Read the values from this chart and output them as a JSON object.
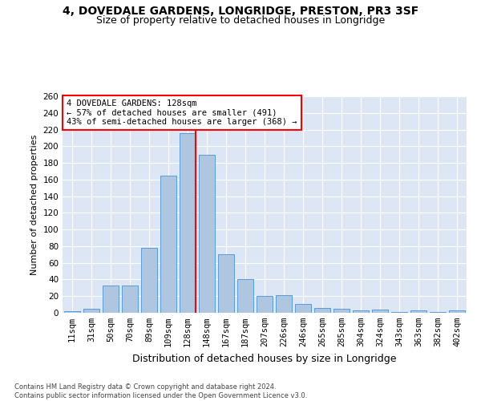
{
  "title": "4, DOVEDALE GARDENS, LONGRIDGE, PRESTON, PR3 3SF",
  "subtitle": "Size of property relative to detached houses in Longridge",
  "xlabel": "Distribution of detached houses by size in Longridge",
  "ylabel": "Number of detached properties",
  "categories": [
    "11sqm",
    "31sqm",
    "50sqm",
    "70sqm",
    "89sqm",
    "109sqm",
    "128sqm",
    "148sqm",
    "167sqm",
    "187sqm",
    "207sqm",
    "226sqm",
    "246sqm",
    "265sqm",
    "285sqm",
    "304sqm",
    "324sqm",
    "343sqm",
    "363sqm",
    "382sqm",
    "402sqm"
  ],
  "values": [
    2,
    5,
    33,
    33,
    78,
    165,
    216,
    190,
    70,
    40,
    20,
    21,
    11,
    6,
    5,
    3,
    4,
    1,
    3,
    1,
    3
  ],
  "bar_color": "#aec6e0",
  "bar_edge_color": "#5b9bd5",
  "marker_index": 6,
  "marker_color": "red",
  "annotation_text": "4 DOVEDALE GARDENS: 128sqm\n← 57% of detached houses are smaller (491)\n43% of semi-detached houses are larger (368) →",
  "ylim": [
    0,
    260
  ],
  "yticks": [
    0,
    20,
    40,
    60,
    80,
    100,
    120,
    140,
    160,
    180,
    200,
    220,
    240,
    260
  ],
  "background_color": "#dce6f5",
  "footer_text": "Contains HM Land Registry data © Crown copyright and database right 2024.\nContains public sector information licensed under the Open Government Licence v3.0.",
  "title_fontsize": 10,
  "subtitle_fontsize": 9,
  "xlabel_fontsize": 9,
  "ylabel_fontsize": 8,
  "tick_fontsize": 7.5
}
